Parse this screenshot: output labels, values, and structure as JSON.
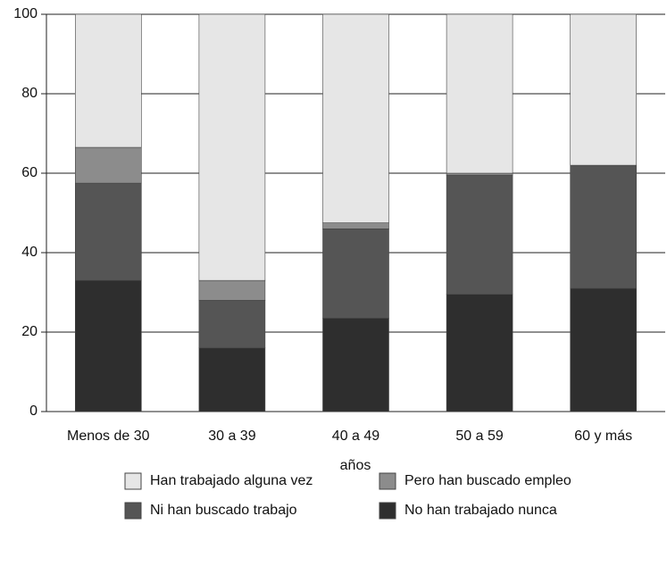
{
  "chart_data": {
    "type": "stacked_bar",
    "x_label": "años",
    "categories": [
      "Menos de 30",
      "30 a 39",
      "40 a 49",
      "50 a 59",
      "60 y más"
    ],
    "series": [
      {
        "name": "No han trabajado nunca",
        "color": "#2e2e2e",
        "values": [
          33,
          16,
          23.5,
          29.5,
          31
        ]
      },
      {
        "name": "Ni han buscado trabajo",
        "color": "#555555",
        "values": [
          24.5,
          12,
          22.5,
          30,
          31
        ]
      },
      {
        "name": "Pero han buscado empleo",
        "color": "#8c8c8c",
        "values": [
          9,
          5,
          1.5,
          0.5,
          0
        ]
      },
      {
        "name": "Han trabajado alguna vez",
        "color": "#e6e6e6",
        "values": [
          33.5,
          67,
          52.5,
          40,
          38
        ]
      }
    ],
    "ylim": [
      0,
      100
    ],
    "yticks": [
      0,
      20,
      40,
      60,
      80,
      100
    ],
    "grid": true
  }
}
